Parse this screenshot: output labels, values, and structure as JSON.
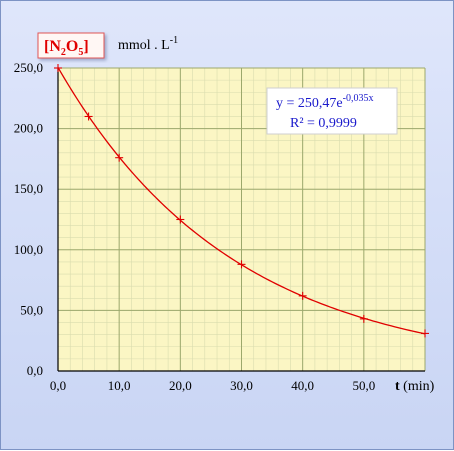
{
  "chart_data": {
    "type": "scatter",
    "species": {
      "base": "[N",
      "sub1": "2",
      "mid": "O",
      "sub2": "5",
      "close": "]"
    },
    "unit": {
      "text": "mmol . L",
      "exp": "-1"
    },
    "xlabel": {
      "bold": "t",
      "rest": " (min)"
    },
    "xlim": [
      0,
      60
    ],
    "ylim": [
      0,
      250
    ],
    "x_ticks": [
      "0,0",
      "10,0",
      "20,0",
      "30,0",
      "40,0",
      "50,0"
    ],
    "x_tick_values": [
      0,
      10,
      20,
      30,
      40,
      50
    ],
    "y_ticks": [
      "0,0",
      "50,0",
      "100,0",
      "150,0",
      "200,0",
      "250,0"
    ],
    "y_tick_values": [
      0,
      50,
      100,
      150,
      200,
      250
    ],
    "grid": true,
    "series": [
      {
        "x": [
          0,
          5,
          10,
          20,
          30,
          40,
          50,
          60
        ],
        "y": [
          250,
          210,
          176,
          125,
          88,
          62,
          43,
          31
        ]
      }
    ],
    "trendline": {
      "a": 250.47,
      "k": -0.035,
      "equation": "y = 250,47e",
      "exponent": "-0,035x",
      "r2": "R² = 0,9999"
    },
    "colors": {
      "plot_bg": "#fbf6c4",
      "major_grid": "#9ca86c",
      "minor_grid": "#d9dcae",
      "curve": "#e00000",
      "marker": "#e00000",
      "label_box_border": "#e05555",
      "eq_text": "#1a1acc"
    }
  }
}
